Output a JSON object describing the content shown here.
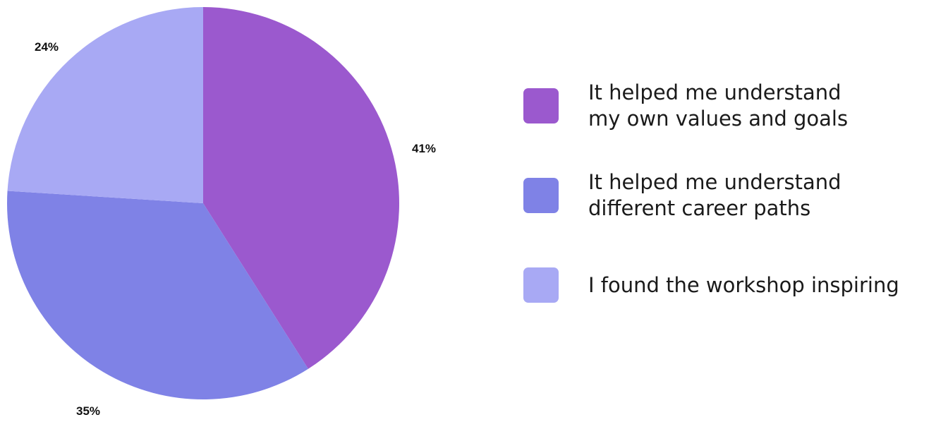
{
  "chart_data": {
    "type": "pie",
    "slices": [
      {
        "label": "It helped me understand\nmy own values and goals",
        "value": 41,
        "value_label": "41%",
        "color": "#9b59ce"
      },
      {
        "label": "It helped me understand\ndifferent career paths",
        "value": 35,
        "value_label": "35%",
        "color": "#7f82e6"
      },
      {
        "label": "I found the workshop inspiring",
        "value": 24,
        "value_label": "24%",
        "color": "#a8a9f4"
      }
    ],
    "start_angle": "12 o'clock",
    "direction": "clockwise",
    "legend_position": "right"
  }
}
